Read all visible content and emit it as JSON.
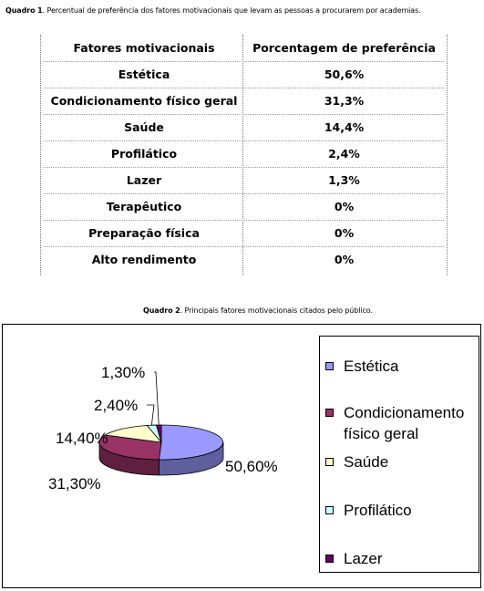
{
  "caption1": {
    "bold": "Quadro 1",
    "text": ". Percentual de preferência dos fatores  motivacionais que levam as pessoas a procurarem por academias."
  },
  "table": {
    "headers": [
      "Fatores motivacionais",
      "Porcentagem de preferência"
    ],
    "rows": [
      [
        "Estética",
        "50,6%"
      ],
      [
        "Condicionamento físico geral",
        "31,3%"
      ],
      [
        "Saúde",
        "14,4%"
      ],
      [
        "Profilático",
        "2,4%"
      ],
      [
        "Lazer",
        "1,3%"
      ],
      [
        "Terapêutico",
        "0%"
      ],
      [
        "Preparação física",
        "0%"
      ],
      [
        "Alto rendimento",
        "0%"
      ]
    ]
  },
  "caption2": {
    "bold": "Quadro 2",
    "text": ". Principais fatores motivacionais citados pelo público."
  },
  "chart_data": {
    "type": "pie",
    "style": "3d",
    "categories": [
      "Estética",
      "Condicionamento físico geral",
      "Saúde",
      "Profilático",
      "Lazer"
    ],
    "values": [
      50.6,
      31.3,
      14.4,
      2.4,
      1.3
    ],
    "data_labels": [
      "50,60%",
      "31,30%",
      "14,40%",
      "2,40%",
      "1,30%"
    ],
    "colors": [
      "#9999ff",
      "#993366",
      "#ffffcc",
      "#ccffff",
      "#660066"
    ],
    "legend": {
      "position": "right",
      "entries": [
        "Estética",
        "Condicionamento físico geral",
        "Saúde",
        "Profilático",
        "Lazer"
      ],
      "line1": [
        "Estética",
        "Condicionamento",
        "Saúde",
        "Profilático",
        "Lazer"
      ],
      "line2": [
        "",
        "físico geral",
        "",
        "",
        ""
      ]
    }
  }
}
